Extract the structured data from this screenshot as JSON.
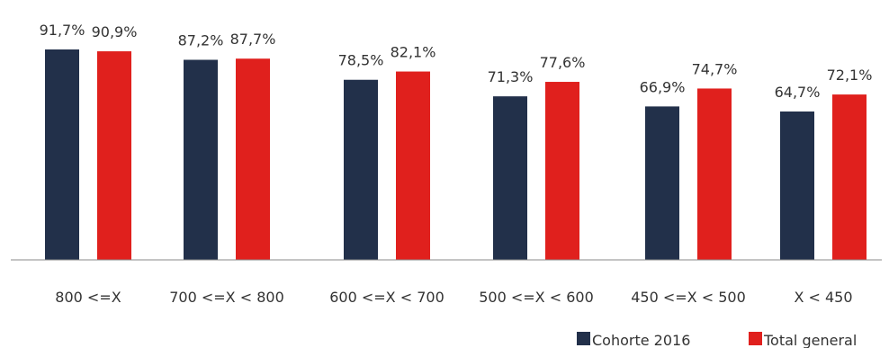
{
  "chart_data": {
    "type": "bar",
    "categories": [
      "800 <=X",
      "700 <=X < 800",
      "600 <=X < 700",
      "500 <=X < 600",
      "450 <=X < 500",
      "X < 450"
    ],
    "series": [
      {
        "name": "Cohorte 2016",
        "color": "#22304a",
        "values": [
          91.7,
          87.2,
          78.5,
          71.3,
          66.9,
          64.7
        ],
        "labels": [
          "91,7%",
          "87,2%",
          "78,5%",
          "71,3%",
          "66,9%",
          "64,7%"
        ]
      },
      {
        "name": "Total general",
        "color": "#e0201d",
        "values": [
          90.9,
          87.7,
          82.1,
          77.6,
          74.7,
          72.1
        ],
        "labels": [
          "90,9%",
          "87,7%",
          "82,1%",
          "77,6%",
          "74,7%",
          "72,1%"
        ]
      }
    ],
    "ylim": [
      0,
      100
    ],
    "grid": false,
    "legend_position": "bottom-right"
  }
}
